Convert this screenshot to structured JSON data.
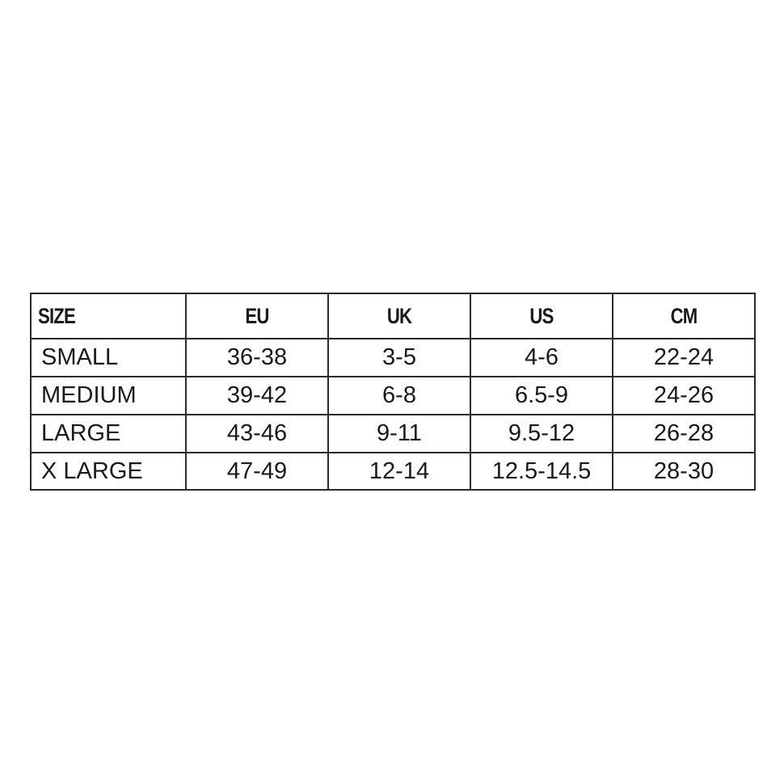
{
  "size_chart": {
    "headers": [
      "SIZE",
      "EU",
      "UK",
      "US",
      "CM"
    ],
    "rows": [
      [
        "SMALL",
        "36-38",
        "3-5",
        "4-6",
        "22-24"
      ],
      [
        "MEDIUM",
        "39-42",
        "6-8",
        "6.5-9",
        "24-26"
      ],
      [
        "LARGE",
        "43-46",
        "9-11",
        "9.5-12",
        "26-28"
      ],
      [
        "X LARGE",
        "47-49",
        "12-14",
        "12.5-14.5",
        "28-30"
      ]
    ]
  }
}
